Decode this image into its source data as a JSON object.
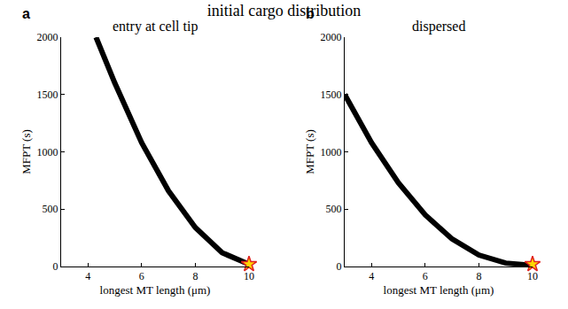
{
  "title": "initial cargo distribution",
  "chart_data": [
    {
      "type": "line",
      "label": "a",
      "title": "entry at cell tip",
      "xlabel": "longest MT length (μm)",
      "ylabel": "MFPT (s)",
      "xlim": [
        3,
        10
      ],
      "xticks": [
        4,
        6,
        8,
        10
      ],
      "ylim": [
        0,
        2000
      ],
      "yticks": [
        0,
        500,
        1000,
        1500,
        2000
      ],
      "grid": false,
      "series": [
        {
          "type": "line",
          "color": "#000000",
          "line_style": "solid",
          "x": [
            4.3,
            5,
            6,
            7,
            8,
            9,
            10
          ],
          "values": [
            2000,
            1600,
            1080,
            660,
            340,
            120,
            20
          ]
        },
        {
          "type": "scatter",
          "marker": "star",
          "color": "#ffd700",
          "x": [
            10
          ],
          "values": [
            20
          ]
        }
      ]
    },
    {
      "type": "line",
      "label": "b",
      "title": "dispersed",
      "xlabel": "longest MT length (μm)",
      "ylabel": "MFPT (s)",
      "xlim": [
        3,
        10
      ],
      "xticks": [
        4,
        6,
        8,
        10
      ],
      "ylim": [
        0,
        2000
      ],
      "yticks": [
        0,
        500,
        1000,
        1500,
        2000
      ],
      "grid": false,
      "series": [
        {
          "type": "line",
          "color": "#000000",
          "line_style": "solid",
          "x": [
            3,
            4,
            5,
            6,
            7,
            8,
            9,
            10
          ],
          "values": [
            1500,
            1080,
            730,
            450,
            240,
            100,
            30,
            10
          ]
        },
        {
          "type": "scatter",
          "marker": "star",
          "color": "#ffd700",
          "x": [
            10
          ],
          "values": [
            20
          ]
        }
      ]
    }
  ]
}
